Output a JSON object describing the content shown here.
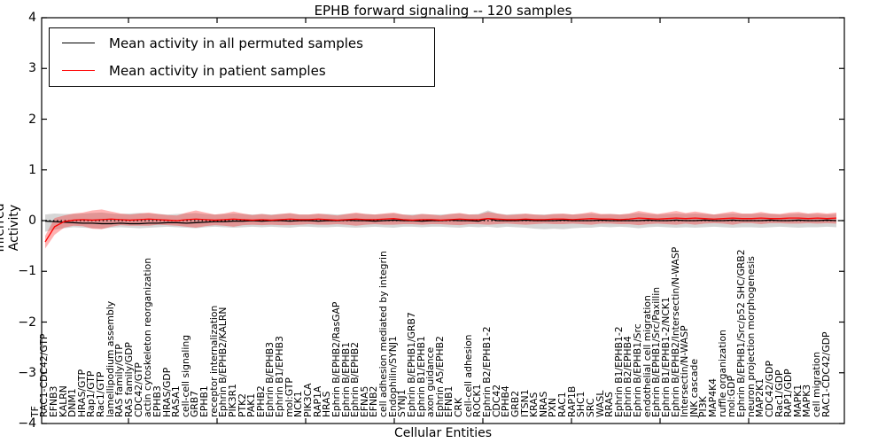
{
  "chart_data": {
    "type": "line",
    "title": "EPHB forward signaling -- 120 samples",
    "xlabel": "Cellular Entities",
    "ylabel": "Inferred Activity",
    "ylim": [
      -4,
      4
    ],
    "yticks": [
      "4",
      "3",
      "2",
      "1",
      "0",
      "-1",
      "-2",
      "-3",
      "-4"
    ],
    "grid": false,
    "legend_position": "upper left",
    "zero_reference_line": true,
    "categories": [
      "TF",
      "RAC1-CDC42/GTP",
      "EFNB3",
      "KALRN",
      "DNM1",
      "HRAS/GTP",
      "Rap1/GTP",
      "Rac1/GTP",
      "lamellipodium assembly",
      "RAS family/GTP",
      "RAS family/GDP",
      "CDC42/GTP",
      "actin cytoskeleton reorganization",
      "EPHB3",
      "HRAS/GDP",
      "RASA1",
      "cell-cell signaling",
      "GRB7",
      "EPHB1",
      "receptor internalization",
      "Ephrin B/EPHB2/KALRN",
      "PIK3R1",
      "PTK2",
      "PAK1",
      "EPHB2",
      "Ephrin B/EPHB3",
      "Ephrin B1/EPHB3",
      "mol:GTP",
      "NCK1",
      "PIK3CA",
      "RAP1A",
      "HRAS",
      "Ephrin B/EPHB2/RasGAP",
      "Ephrin B/EPHB1",
      "Ephrin B/EPHB2",
      "EFNA5",
      "EFNB2",
      "cell adhesion mediated by integrin",
      "Endophilin/SYNJ1",
      "SYNJ1",
      "Ephrin B/EPHB1/GRB7",
      "Ephrin B1/EPHB1",
      "axon guidance",
      "Ephrin A5/EPHB2",
      "EFNB1",
      "CRK",
      "cell-cell adhesion",
      "ROCK1",
      "Ephrin B2/EPHB1-2",
      "CDC42",
      "EPHB4",
      "GRB2",
      "ITSN1",
      "KRAS",
      "NRAS",
      "PXN",
      "RAC1",
      "RAP1B",
      "SHC1",
      "SRC",
      "WASL",
      "RRAS",
      "Ephrin B1/EPHB1-2",
      "Ephrin B2/EPHB4",
      "Ephrin B/EPHB1/Src",
      "endothelial cell migration",
      "Ephrin B/EPHB1/Src/Paxillin",
      "Ephrin B1/EPHB1-2/NCK1",
      "Ephrin B/EPHB2/Intersectin/N-WASP",
      "Intersectin/N-WASP",
      "JNK cascade",
      "PI3K",
      "MAP4K4",
      "ruffle organization",
      "mol:GDP",
      "Ephrin B/EPHB1/Src/p52 SHC/GRB2",
      "neuron projection morphogenesis",
      "MAP2K1",
      "CDC42/GDP",
      "Rac1/GDP",
      "RAP1/GDP",
      "MAPK1",
      "MAPK3",
      "cell migration",
      "RAC1-CDC42/GDP"
    ],
    "series": [
      {
        "name": "Mean activity in all permuted samples",
        "color": "#000000",
        "values": [
          -0.01,
          -0.02,
          -0.03,
          -0.04,
          -0.05,
          -0.05,
          -0.06,
          -0.06,
          -0.05,
          -0.06,
          -0.06,
          -0.05,
          -0.05,
          -0.04,
          -0.04,
          -0.05,
          -0.04,
          -0.03,
          -0.02,
          -0.02,
          -0.01,
          -0.01,
          0.0,
          -0.01,
          0.0,
          0.0,
          -0.01,
          0.0,
          0.0,
          -0.01,
          0.0,
          0.0,
          0.01,
          0.0,
          0.0,
          -0.01,
          0.0,
          0.01,
          0.0,
          0.0,
          -0.01,
          0.0,
          0.0,
          0.01,
          0.0,
          0.0,
          -0.01,
          0.04,
          0.0,
          0.0,
          0.0,
          0.01,
          0.0,
          0.0,
          0.0,
          0.01,
          0.0,
          0.0,
          0.0,
          0.01,
          0.0,
          0.0,
          0.0,
          0.0,
          0.01,
          0.0,
          0.0,
          0.01,
          0.0,
          0.0,
          0.01,
          0.0,
          0.0,
          0.01,
          0.0,
          0.0,
          0.0,
          0.01,
          0.0,
          0.0,
          0.01,
          0.0,
          0.0,
          0.01,
          0.0
        ]
      },
      {
        "name": "Mean activity in patient samples",
        "color": "#ff0000",
        "values": [
          -0.42,
          -0.12,
          -0.02,
          0.01,
          0.02,
          0.01,
          0.02,
          0.03,
          0.02,
          0.01,
          0.02,
          0.03,
          0.02,
          0.01,
          0.0,
          0.02,
          0.03,
          0.02,
          0.01,
          0.02,
          0.03,
          0.02,
          0.01,
          0.02,
          0.01,
          0.02,
          0.03,
          0.02,
          0.02,
          0.03,
          0.02,
          0.01,
          0.02,
          0.03,
          0.02,
          0.02,
          0.03,
          0.04,
          0.02,
          0.01,
          0.02,
          0.02,
          0.01,
          0.02,
          0.03,
          0.02,
          0.02,
          0.04,
          0.03,
          0.02,
          0.02,
          0.03,
          0.02,
          0.02,
          0.03,
          0.03,
          0.02,
          0.03,
          0.04,
          0.03,
          0.03,
          0.02,
          0.03,
          0.05,
          0.04,
          0.03,
          0.04,
          0.05,
          0.04,
          0.05,
          0.04,
          0.03,
          0.04,
          0.05,
          0.04,
          0.04,
          0.05,
          0.04,
          0.04,
          0.05,
          0.05,
          0.04,
          0.05,
          0.04,
          0.05
        ]
      }
    ],
    "bands": [
      {
        "name": "permuted samples range",
        "color": "rgba(0,0,0,0.16)",
        "upper": [
          0.12,
          0.14,
          0.13,
          0.13,
          0.14,
          0.15,
          0.16,
          0.14,
          0.13,
          0.14,
          0.15,
          0.14,
          0.13,
          0.12,
          0.13,
          0.14,
          0.15,
          0.13,
          0.12,
          0.13,
          0.14,
          0.13,
          0.12,
          0.13,
          0.12,
          0.13,
          0.14,
          0.12,
          0.12,
          0.13,
          0.13,
          0.12,
          0.13,
          0.14,
          0.13,
          0.12,
          0.13,
          0.14,
          0.12,
          0.12,
          0.13,
          0.12,
          0.12,
          0.13,
          0.14,
          0.12,
          0.13,
          0.2,
          0.14,
          0.12,
          0.13,
          0.13,
          0.12,
          0.12,
          0.13,
          0.13,
          0.12,
          0.13,
          0.14,
          0.12,
          0.13,
          0.12,
          0.13,
          0.15,
          0.13,
          0.12,
          0.13,
          0.14,
          0.13,
          0.14,
          0.13,
          0.12,
          0.13,
          0.14,
          0.13,
          0.13,
          0.14,
          0.13,
          0.12,
          0.13,
          0.14,
          0.13,
          0.13,
          0.12,
          0.13
        ],
        "lower": [
          -0.22,
          -0.18,
          -0.15,
          -0.13,
          -0.14,
          -0.15,
          -0.16,
          -0.14,
          -0.13,
          -0.14,
          -0.15,
          -0.14,
          -0.13,
          -0.12,
          -0.13,
          -0.14,
          -0.15,
          -0.13,
          -0.12,
          -0.13,
          -0.14,
          -0.13,
          -0.12,
          -0.13,
          -0.12,
          -0.13,
          -0.14,
          -0.12,
          -0.12,
          -0.13,
          -0.13,
          -0.12,
          -0.13,
          -0.14,
          -0.13,
          -0.12,
          -0.13,
          -0.14,
          -0.12,
          -0.12,
          -0.13,
          -0.12,
          -0.12,
          -0.13,
          -0.14,
          -0.12,
          -0.13,
          -0.12,
          -0.14,
          -0.12,
          -0.13,
          -0.14,
          -0.16,
          -0.17,
          -0.16,
          -0.17,
          -0.15,
          -0.14,
          -0.14,
          -0.12,
          -0.13,
          -0.12,
          -0.13,
          -0.15,
          -0.13,
          -0.12,
          -0.13,
          -0.14,
          -0.13,
          -0.14,
          -0.13,
          -0.12,
          -0.13,
          -0.14,
          -0.13,
          -0.13,
          -0.14,
          -0.13,
          -0.12,
          -0.13,
          -0.14,
          -0.13,
          -0.13,
          -0.12,
          -0.13
        ]
      },
      {
        "name": "patient samples range",
        "color": "rgba(255,0,0,0.3)",
        "upper": [
          -0.3,
          0.05,
          0.1,
          0.14,
          0.16,
          0.2,
          0.22,
          0.18,
          0.14,
          0.12,
          0.14,
          0.16,
          0.13,
          0.11,
          0.1,
          0.16,
          0.2,
          0.16,
          0.12,
          0.14,
          0.18,
          0.14,
          0.11,
          0.13,
          0.11,
          0.13,
          0.15,
          0.12,
          0.12,
          0.14,
          0.12,
          0.1,
          0.13,
          0.16,
          0.13,
          0.12,
          0.14,
          0.16,
          0.12,
          0.1,
          0.13,
          0.12,
          0.1,
          0.13,
          0.15,
          0.12,
          0.12,
          0.17,
          0.14,
          0.11,
          0.12,
          0.14,
          0.12,
          0.11,
          0.13,
          0.14,
          0.12,
          0.14,
          0.17,
          0.13,
          0.13,
          0.12,
          0.14,
          0.19,
          0.16,
          0.13,
          0.16,
          0.19,
          0.15,
          0.18,
          0.15,
          0.12,
          0.15,
          0.18,
          0.14,
          0.14,
          0.17,
          0.14,
          0.13,
          0.16,
          0.17,
          0.14,
          0.16,
          0.14,
          0.16
        ],
        "lower": [
          -0.55,
          -0.28,
          -0.14,
          -0.1,
          -0.11,
          -0.16,
          -0.17,
          -0.12,
          -0.09,
          -0.1,
          -0.1,
          -0.1,
          -0.08,
          -0.09,
          -0.1,
          -0.12,
          -0.14,
          -0.11,
          -0.09,
          -0.1,
          -0.12,
          -0.09,
          -0.08,
          -0.09,
          -0.08,
          -0.09,
          -0.09,
          -0.08,
          -0.07,
          -0.08,
          -0.08,
          -0.07,
          -0.08,
          -0.1,
          -0.08,
          -0.07,
          -0.08,
          -0.08,
          -0.07,
          -0.07,
          -0.08,
          -0.07,
          -0.07,
          -0.08,
          -0.09,
          -0.07,
          -0.07,
          -0.08,
          -0.07,
          -0.06,
          -0.07,
          -0.08,
          -0.07,
          -0.06,
          -0.07,
          -0.07,
          -0.06,
          -0.07,
          -0.08,
          -0.06,
          -0.06,
          -0.07,
          -0.07,
          -0.09,
          -0.07,
          -0.06,
          -0.07,
          -0.08,
          -0.06,
          -0.08,
          -0.06,
          -0.05,
          -0.06,
          -0.08,
          -0.05,
          -0.05,
          -0.07,
          -0.05,
          -0.05,
          -0.06,
          -0.06,
          -0.05,
          -0.06,
          -0.05,
          -0.06
        ]
      }
    ]
  },
  "legend": {
    "items": [
      {
        "label": "Mean activity in all permuted samples",
        "color": "#000000"
      },
      {
        "label": "Mean activity in patient samples",
        "color": "#ff0000"
      }
    ]
  },
  "colors": {
    "frame": "#000000",
    "background": "#ffffff",
    "permuted_line": "#000000",
    "patient_line": "#ff0000"
  }
}
